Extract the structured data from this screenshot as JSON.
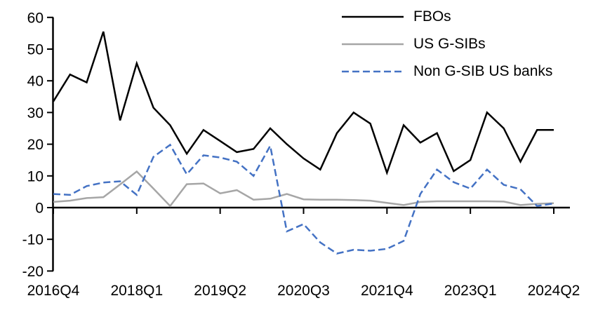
{
  "chart_data": {
    "type": "line",
    "title": "",
    "xlabel": "",
    "ylabel": "",
    "grid": false,
    "legend_position": "top-right-inside",
    "axis_color": "#000000",
    "ylim": [
      -20,
      60
    ],
    "y_ticks": [
      60,
      50,
      40,
      30,
      20,
      10,
      0,
      -10,
      -20
    ],
    "x_tick_labels": [
      "2016Q4",
      "2018Q1",
      "2019Q2",
      "2020Q3",
      "2021Q4",
      "2023Q1",
      "2024Q2"
    ],
    "x_tick_indices": [
      0,
      5,
      10,
      15,
      20,
      25,
      30
    ],
    "categories": [
      "2016Q4",
      "2017Q1",
      "2017Q2",
      "2017Q3",
      "2017Q4",
      "2018Q1",
      "2018Q2",
      "2018Q3",
      "2018Q4",
      "2019Q1",
      "2019Q2",
      "2019Q3",
      "2019Q4",
      "2020Q1",
      "2020Q2",
      "2020Q3",
      "2020Q4",
      "2021Q1",
      "2021Q2",
      "2021Q3",
      "2021Q4",
      "2022Q1",
      "2022Q2",
      "2022Q3",
      "2022Q4",
      "2023Q1",
      "2023Q2",
      "2023Q3",
      "2023Q4",
      "2024Q1",
      "2024Q2"
    ],
    "series": [
      {
        "name": "FBOs",
        "color": "#000000",
        "dash": null,
        "values": [
          33.5,
          42,
          39.5,
          55.5,
          27.5,
          45.5,
          31.5,
          26,
          17,
          24.5,
          21,
          17.5,
          18.5,
          25,
          20,
          15.5,
          12,
          23.5,
          30,
          26.5,
          11,
          26,
          20.5,
          23.5,
          11.5,
          15,
          30,
          25,
          14.5,
          24.5,
          24.5
        ]
      },
      {
        "name": "US G-SIBs",
        "color": "#a6a6a6",
        "dash": null,
        "values": [
          1.8,
          2.2,
          3,
          3.3,
          7.3,
          11.4,
          6,
          0.5,
          7.4,
          7.6,
          4.5,
          5.5,
          2.5,
          2.8,
          4.3,
          2.6,
          2.5,
          2.5,
          2.4,
          2.2,
          1.5,
          0.8,
          1.8,
          2,
          2,
          2,
          2,
          1.9,
          0.8,
          1.2,
          1.4
        ]
      },
      {
        "name": "Non G-SIB US banks",
        "color": "#4472c4",
        "dash": "10 5",
        "values": [
          4.3,
          4,
          6.8,
          7.9,
          8.3,
          4,
          16,
          19.8,
          10.5,
          16.5,
          15.8,
          14.5,
          10,
          19.5,
          -7.5,
          -5.2,
          -11,
          -14.5,
          -13.3,
          -13.6,
          -13,
          -10.5,
          4.3,
          12,
          8,
          6,
          12,
          7.2,
          5.8,
          0.5,
          1.3
        ]
      }
    ]
  }
}
